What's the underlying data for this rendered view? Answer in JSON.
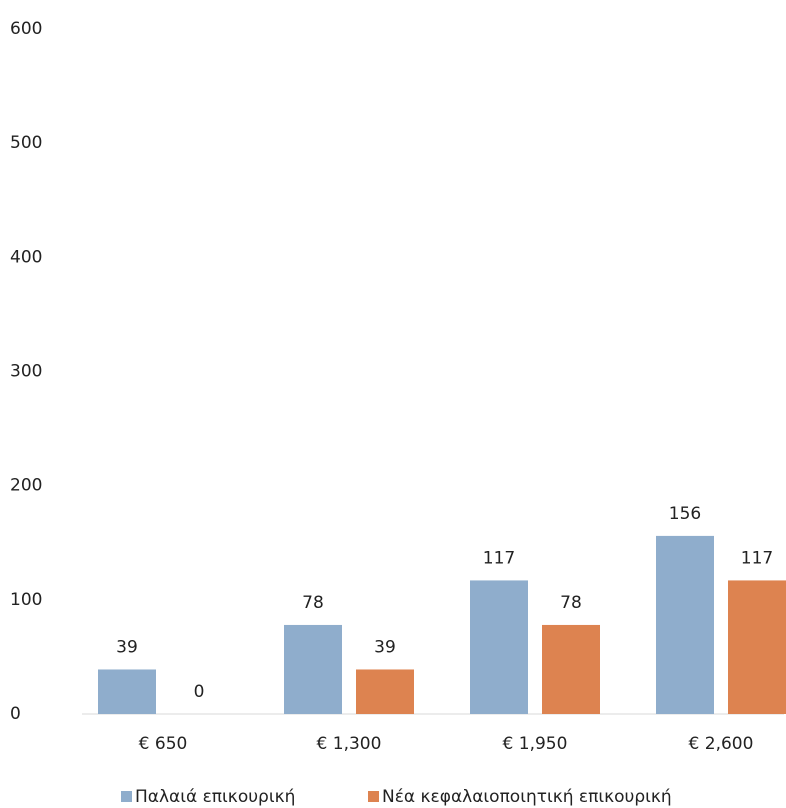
{
  "chart_data": {
    "type": "bar",
    "categories": [
      "€ 650",
      "€ 1,300",
      "€ 1,950",
      "€ 2,600"
    ],
    "series": [
      {
        "name": "Παλαιά επικουρική",
        "color": "#8fadcc",
        "values": [
          39,
          78,
          117,
          156
        ]
      },
      {
        "name": "Νέα κεφαλαιοποιητική επικουρική",
        "color": "#dd8350",
        "values": [
          0,
          39,
          78,
          117
        ]
      }
    ],
    "ylim": [
      0,
      600
    ],
    "yticks": [
      0,
      100,
      200,
      300,
      400,
      500,
      600
    ],
    "grid": false
  }
}
